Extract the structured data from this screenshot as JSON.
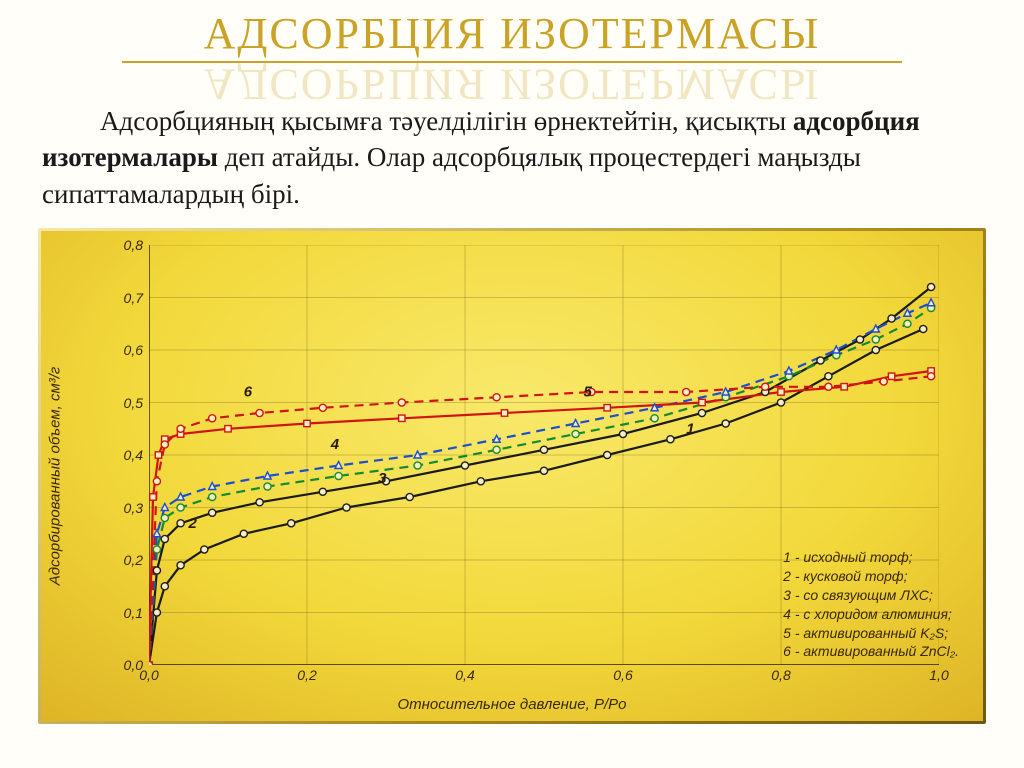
{
  "title": "АДСОРБЦИЯ ИЗОТЕРМАСЫ",
  "paragraph": {
    "part1": "Адсорбцияның қысымға тәуелділігін өрнектейтін, қисықты ",
    "bold": "адсорбция изотермалары",
    "part2": " деп атайды. Олар адсорбцялық процестердегі маңызды сипаттамалардың бірі."
  },
  "chart": {
    "type": "line",
    "x_label": "Относительное давление, P/Pо",
    "y_label": "Адсорбированный объем, см³/г",
    "x_lim": [
      0.0,
      1.0
    ],
    "y_lim": [
      0.0,
      0.8
    ],
    "x_ticks": [
      0.0,
      0.2,
      0.4,
      0.6,
      0.8,
      1.0
    ],
    "x_tick_labels": [
      "0,0",
      "0,2",
      "0,4",
      "0,6",
      "0,8",
      "1,0"
    ],
    "y_ticks": [
      0.0,
      0.1,
      0.2,
      0.3,
      0.4,
      0.5,
      0.6,
      0.7,
      0.8
    ],
    "y_tick_labels": [
      "0,0",
      "0,1",
      "0,2",
      "0,3",
      "0,4",
      "0,5",
      "0,6",
      "0,7",
      "0,8"
    ],
    "grid_color": "#8c7520",
    "background_gradient": [
      "#f9e96b",
      "#d8aa20"
    ],
    "axis_fontsize": 14,
    "label_fontsize": 15,
    "series": [
      {
        "id": "1",
        "name": "исходный торф",
        "color": "#1b1b1b",
        "dash": false,
        "marker": "circle",
        "points": [
          [
            0.0,
            0.0
          ],
          [
            0.01,
            0.1
          ],
          [
            0.02,
            0.15
          ],
          [
            0.04,
            0.19
          ],
          [
            0.07,
            0.22
          ],
          [
            0.12,
            0.25
          ],
          [
            0.18,
            0.27
          ],
          [
            0.25,
            0.3
          ],
          [
            0.33,
            0.32
          ],
          [
            0.42,
            0.35
          ],
          [
            0.5,
            0.37
          ],
          [
            0.58,
            0.4
          ],
          [
            0.66,
            0.43
          ],
          [
            0.73,
            0.46
          ],
          [
            0.8,
            0.5
          ],
          [
            0.86,
            0.55
          ],
          [
            0.92,
            0.6
          ],
          [
            0.98,
            0.64
          ]
        ]
      },
      {
        "id": "2",
        "name": "кусковой торф",
        "color": "#1b1b1b",
        "dash": false,
        "marker": "circle",
        "points": [
          [
            0.0,
            0.0
          ],
          [
            0.01,
            0.18
          ],
          [
            0.02,
            0.24
          ],
          [
            0.04,
            0.27
          ],
          [
            0.08,
            0.29
          ],
          [
            0.14,
            0.31
          ],
          [
            0.22,
            0.33
          ],
          [
            0.3,
            0.35
          ],
          [
            0.4,
            0.38
          ],
          [
            0.5,
            0.41
          ],
          [
            0.6,
            0.44
          ],
          [
            0.7,
            0.48
          ],
          [
            0.78,
            0.52
          ],
          [
            0.85,
            0.58
          ],
          [
            0.9,
            0.62
          ],
          [
            0.94,
            0.66
          ],
          [
            0.99,
            0.72
          ]
        ]
      },
      {
        "id": "3",
        "name": "со связующим ЛХС",
        "color": "#148a2e",
        "dash": true,
        "marker": "circle",
        "points": [
          [
            0.0,
            0.0
          ],
          [
            0.01,
            0.22
          ],
          [
            0.02,
            0.28
          ],
          [
            0.04,
            0.3
          ],
          [
            0.08,
            0.32
          ],
          [
            0.15,
            0.34
          ],
          [
            0.24,
            0.36
          ],
          [
            0.34,
            0.38
          ],
          [
            0.44,
            0.41
          ],
          [
            0.54,
            0.44
          ],
          [
            0.64,
            0.47
          ],
          [
            0.73,
            0.51
          ],
          [
            0.81,
            0.55
          ],
          [
            0.87,
            0.59
          ],
          [
            0.92,
            0.62
          ],
          [
            0.96,
            0.65
          ],
          [
            0.99,
            0.68
          ]
        ]
      },
      {
        "id": "4",
        "name": "с хлоридом алюминия",
        "color": "#1a4fd0",
        "dash": true,
        "marker": "triangle",
        "points": [
          [
            0.0,
            0.0
          ],
          [
            0.01,
            0.25
          ],
          [
            0.02,
            0.3
          ],
          [
            0.04,
            0.32
          ],
          [
            0.08,
            0.34
          ],
          [
            0.15,
            0.36
          ],
          [
            0.24,
            0.38
          ],
          [
            0.34,
            0.4
          ],
          [
            0.44,
            0.43
          ],
          [
            0.54,
            0.46
          ],
          [
            0.64,
            0.49
          ],
          [
            0.73,
            0.52
          ],
          [
            0.81,
            0.56
          ],
          [
            0.87,
            0.6
          ],
          [
            0.92,
            0.64
          ],
          [
            0.96,
            0.67
          ],
          [
            0.99,
            0.69
          ]
        ]
      },
      {
        "id": "5",
        "name": "активированный K₂S",
        "color": "#d01414",
        "dash": false,
        "marker": "square",
        "points": [
          [
            0.0,
            0.0
          ],
          [
            0.005,
            0.32
          ],
          [
            0.012,
            0.4
          ],
          [
            0.02,
            0.43
          ],
          [
            0.04,
            0.44
          ],
          [
            0.1,
            0.45
          ],
          [
            0.2,
            0.46
          ],
          [
            0.32,
            0.47
          ],
          [
            0.45,
            0.48
          ],
          [
            0.58,
            0.49
          ],
          [
            0.7,
            0.5
          ],
          [
            0.8,
            0.52
          ],
          [
            0.88,
            0.53
          ],
          [
            0.94,
            0.55
          ],
          [
            0.99,
            0.56
          ]
        ]
      },
      {
        "id": "6",
        "name": "активированный ZnCl₂",
        "color": "#d01414",
        "dash": true,
        "marker": "circle",
        "points": [
          [
            0.0,
            0.0
          ],
          [
            0.01,
            0.35
          ],
          [
            0.02,
            0.42
          ],
          [
            0.04,
            0.45
          ],
          [
            0.08,
            0.47
          ],
          [
            0.14,
            0.48
          ],
          [
            0.22,
            0.49
          ],
          [
            0.32,
            0.5
          ],
          [
            0.44,
            0.51
          ],
          [
            0.56,
            0.52
          ],
          [
            0.68,
            0.52
          ],
          [
            0.78,
            0.53
          ],
          [
            0.86,
            0.53
          ],
          [
            0.93,
            0.54
          ],
          [
            0.99,
            0.55
          ]
        ]
      }
    ],
    "series_label_positions": {
      "1": [
        0.68,
        0.43
      ],
      "2": [
        0.05,
        0.25
      ],
      "3": [
        0.29,
        0.335
      ],
      "4": [
        0.23,
        0.4
      ],
      "5": [
        0.55,
        0.5
      ],
      "6": [
        0.12,
        0.5
      ]
    },
    "legend": [
      "1 - исходный торф;",
      "2 - кусковой торф;",
      "3 - со связующим ЛХС;",
      "4 - с хлоридом алюминия;",
      "5 - активированный K₂S;",
      "6 - активированный ZnCl₂."
    ]
  }
}
